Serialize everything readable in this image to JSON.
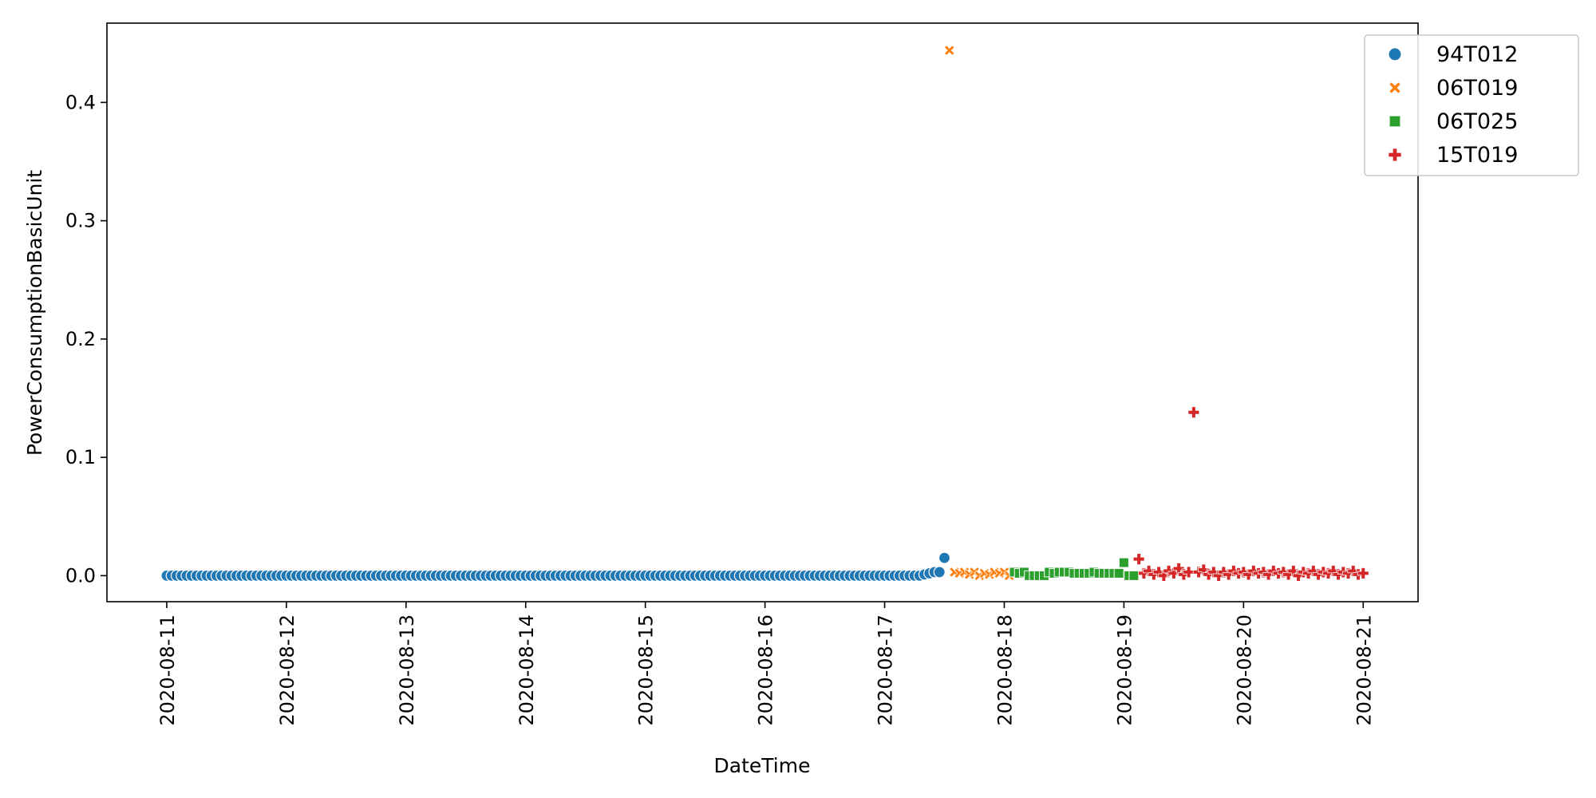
{
  "chart_data": {
    "type": "scatter",
    "title": "",
    "xlabel": "DateTime",
    "ylabel": "PowerConsumptionBasicUnit",
    "x_type": "datetime",
    "xlim": [
      "2020-08-10T12:00",
      "2020-08-21T11:00"
    ],
    "ylim": [
      -0.022,
      0.467
    ],
    "x_ticks": [
      "2020-08-11",
      "2020-08-12",
      "2020-08-13",
      "2020-08-14",
      "2020-08-15",
      "2020-08-16",
      "2020-08-17",
      "2020-08-18",
      "2020-08-19",
      "2020-08-20",
      "2020-08-21"
    ],
    "y_ticks": [
      "0.0",
      "0.1",
      "0.2",
      "0.3",
      "0.4"
    ],
    "grid": false,
    "legend_position": "upper-right-outside",
    "series": [
      {
        "name": "94T012",
        "marker": "circle",
        "color": "#1f77b4",
        "points": [
          [
            "2020-08-11T00:00",
            0.0
          ],
          [
            "2020-08-11T01:00",
            0.0
          ],
          [
            "2020-08-11T02:00",
            0.0
          ],
          [
            "2020-08-11T03:00",
            0.0
          ],
          [
            "2020-08-11T04:00",
            0.0
          ],
          [
            "2020-08-11T05:00",
            0.0
          ],
          [
            "2020-08-11T06:00",
            0.0
          ],
          [
            "2020-08-11T07:00",
            0.0
          ],
          [
            "2020-08-11T08:00",
            0.0
          ],
          [
            "2020-08-11T09:00",
            0.0
          ],
          [
            "2020-08-11T10:00",
            0.0
          ],
          [
            "2020-08-11T11:00",
            0.0
          ],
          [
            "2020-08-11T12:00",
            0.0
          ],
          [
            "2020-08-11T13:00",
            0.0
          ],
          [
            "2020-08-11T14:00",
            0.0
          ],
          [
            "2020-08-11T15:00",
            0.0
          ],
          [
            "2020-08-11T16:00",
            0.0
          ],
          [
            "2020-08-11T17:00",
            0.0
          ],
          [
            "2020-08-11T18:00",
            0.0
          ],
          [
            "2020-08-11T19:00",
            0.0
          ],
          [
            "2020-08-11T20:00",
            0.0
          ],
          [
            "2020-08-11T21:00",
            0.0
          ],
          [
            "2020-08-11T22:00",
            0.0
          ],
          [
            "2020-08-11T23:00",
            0.0
          ],
          [
            "2020-08-12T00:00",
            0.0
          ],
          [
            "2020-08-12T01:00",
            0.0
          ],
          [
            "2020-08-12T02:00",
            0.0
          ],
          [
            "2020-08-12T03:00",
            0.0
          ],
          [
            "2020-08-12T04:00",
            0.0
          ],
          [
            "2020-08-12T05:00",
            0.0
          ],
          [
            "2020-08-12T06:00",
            0.0
          ],
          [
            "2020-08-12T07:00",
            0.0
          ],
          [
            "2020-08-12T08:00",
            0.0
          ],
          [
            "2020-08-12T09:00",
            0.0
          ],
          [
            "2020-08-12T10:00",
            0.0
          ],
          [
            "2020-08-12T11:00",
            0.0
          ],
          [
            "2020-08-12T12:00",
            0.0
          ],
          [
            "2020-08-12T13:00",
            0.0
          ],
          [
            "2020-08-12T14:00",
            0.0
          ],
          [
            "2020-08-12T15:00",
            0.0
          ],
          [
            "2020-08-12T16:00",
            0.0
          ],
          [
            "2020-08-12T17:00",
            0.0
          ],
          [
            "2020-08-12T18:00",
            0.0
          ],
          [
            "2020-08-12T19:00",
            0.0
          ],
          [
            "2020-08-12T20:00",
            0.0
          ],
          [
            "2020-08-12T21:00",
            0.0
          ],
          [
            "2020-08-12T22:00",
            0.0
          ],
          [
            "2020-08-12T23:00",
            0.0
          ],
          [
            "2020-08-13T00:00",
            0.0
          ],
          [
            "2020-08-13T01:00",
            0.0
          ],
          [
            "2020-08-13T02:00",
            0.0
          ],
          [
            "2020-08-13T03:00",
            0.0
          ],
          [
            "2020-08-13T04:00",
            0.0
          ],
          [
            "2020-08-13T05:00",
            0.0
          ],
          [
            "2020-08-13T06:00",
            0.0
          ],
          [
            "2020-08-13T07:00",
            0.0
          ],
          [
            "2020-08-13T08:00",
            0.0
          ],
          [
            "2020-08-13T09:00",
            0.0
          ],
          [
            "2020-08-13T10:00",
            0.0
          ],
          [
            "2020-08-13T11:00",
            0.0
          ],
          [
            "2020-08-13T12:00",
            0.0
          ],
          [
            "2020-08-13T13:00",
            0.0
          ],
          [
            "2020-08-13T14:00",
            0.0
          ],
          [
            "2020-08-13T15:00",
            0.0
          ],
          [
            "2020-08-13T16:00",
            0.0
          ],
          [
            "2020-08-13T17:00",
            0.0
          ],
          [
            "2020-08-13T18:00",
            0.0
          ],
          [
            "2020-08-13T19:00",
            0.0
          ],
          [
            "2020-08-13T20:00",
            0.0
          ],
          [
            "2020-08-13T21:00",
            0.0
          ],
          [
            "2020-08-13T22:00",
            0.0
          ],
          [
            "2020-08-13T23:00",
            0.0
          ],
          [
            "2020-08-14T00:00",
            0.0
          ],
          [
            "2020-08-14T01:00",
            0.0
          ],
          [
            "2020-08-14T02:00",
            0.0
          ],
          [
            "2020-08-14T03:00",
            0.0
          ],
          [
            "2020-08-14T04:00",
            0.0
          ],
          [
            "2020-08-14T05:00",
            0.0
          ],
          [
            "2020-08-14T06:00",
            0.0
          ],
          [
            "2020-08-14T07:00",
            0.0
          ],
          [
            "2020-08-14T08:00",
            0.0
          ],
          [
            "2020-08-14T09:00",
            0.0
          ],
          [
            "2020-08-14T10:00",
            0.0
          ],
          [
            "2020-08-14T11:00",
            0.0
          ],
          [
            "2020-08-14T12:00",
            0.0
          ],
          [
            "2020-08-14T13:00",
            0.0
          ],
          [
            "2020-08-14T14:00",
            0.0
          ],
          [
            "2020-08-14T15:00",
            0.0
          ],
          [
            "2020-08-14T16:00",
            0.0
          ],
          [
            "2020-08-14T17:00",
            0.0
          ],
          [
            "2020-08-14T18:00",
            0.0
          ],
          [
            "2020-08-14T19:00",
            0.0
          ],
          [
            "2020-08-14T20:00",
            0.0
          ],
          [
            "2020-08-14T21:00",
            0.0
          ],
          [
            "2020-08-14T22:00",
            0.0
          ],
          [
            "2020-08-14T23:00",
            0.0
          ],
          [
            "2020-08-15T00:00",
            0.0
          ],
          [
            "2020-08-15T01:00",
            0.0
          ],
          [
            "2020-08-15T02:00",
            0.0
          ],
          [
            "2020-08-15T03:00",
            0.0
          ],
          [
            "2020-08-15T04:00",
            0.0
          ],
          [
            "2020-08-15T05:00",
            0.0
          ],
          [
            "2020-08-15T06:00",
            0.0
          ],
          [
            "2020-08-15T07:00",
            0.0
          ],
          [
            "2020-08-15T08:00",
            0.0
          ],
          [
            "2020-08-15T09:00",
            0.0
          ],
          [
            "2020-08-15T10:00",
            0.0
          ],
          [
            "2020-08-15T11:00",
            0.0
          ],
          [
            "2020-08-15T12:00",
            0.0
          ],
          [
            "2020-08-15T13:00",
            0.0
          ],
          [
            "2020-08-15T14:00",
            0.0
          ],
          [
            "2020-08-15T15:00",
            0.0
          ],
          [
            "2020-08-15T16:00",
            0.0
          ],
          [
            "2020-08-15T17:00",
            0.0
          ],
          [
            "2020-08-15T18:00",
            0.0
          ],
          [
            "2020-08-15T19:00",
            0.0
          ],
          [
            "2020-08-15T20:00",
            0.0
          ],
          [
            "2020-08-15T21:00",
            0.0
          ],
          [
            "2020-08-15T22:00",
            0.0
          ],
          [
            "2020-08-15T23:00",
            0.0
          ],
          [
            "2020-08-16T00:00",
            0.0
          ],
          [
            "2020-08-16T01:00",
            0.0
          ],
          [
            "2020-08-16T02:00",
            0.0
          ],
          [
            "2020-08-16T03:00",
            0.0
          ],
          [
            "2020-08-16T04:00",
            0.0
          ],
          [
            "2020-08-16T05:00",
            0.0
          ],
          [
            "2020-08-16T06:00",
            0.0
          ],
          [
            "2020-08-16T07:00",
            0.0
          ],
          [
            "2020-08-16T08:00",
            0.0
          ],
          [
            "2020-08-16T09:00",
            0.0
          ],
          [
            "2020-08-16T10:00",
            0.0
          ],
          [
            "2020-08-16T11:00",
            0.0
          ],
          [
            "2020-08-16T12:00",
            0.0
          ],
          [
            "2020-08-16T13:00",
            0.0
          ],
          [
            "2020-08-16T14:00",
            0.0
          ],
          [
            "2020-08-16T15:00",
            0.0
          ],
          [
            "2020-08-16T16:00",
            0.0
          ],
          [
            "2020-08-16T17:00",
            0.0
          ],
          [
            "2020-08-16T18:00",
            0.0
          ],
          [
            "2020-08-16T19:00",
            0.0
          ],
          [
            "2020-08-16T20:00",
            0.0
          ],
          [
            "2020-08-16T21:00",
            0.0
          ],
          [
            "2020-08-16T22:00",
            0.0
          ],
          [
            "2020-08-16T23:00",
            0.0
          ],
          [
            "2020-08-17T00:00",
            0.0
          ],
          [
            "2020-08-17T01:00",
            0.0
          ],
          [
            "2020-08-17T02:00",
            0.0
          ],
          [
            "2020-08-17T03:00",
            0.0
          ],
          [
            "2020-08-17T04:00",
            0.0
          ],
          [
            "2020-08-17T05:00",
            0.0
          ],
          [
            "2020-08-17T06:00",
            0.0
          ],
          [
            "2020-08-17T07:00",
            0.0
          ],
          [
            "2020-08-17T08:00",
            0.001
          ],
          [
            "2020-08-17T09:00",
            0.002
          ],
          [
            "2020-08-17T10:00",
            0.003
          ],
          [
            "2020-08-17T11:00",
            0.003
          ],
          [
            "2020-08-17T12:00",
            0.015
          ]
        ]
      },
      {
        "name": "06T019",
        "marker": "x",
        "color": "#ff7f0e",
        "points": [
          [
            "2020-08-17T13:00",
            0.444
          ],
          [
            "2020-08-17T14:00",
            0.003
          ],
          [
            "2020-08-17T15:00",
            0.002
          ],
          [
            "2020-08-17T16:00",
            0.003
          ],
          [
            "2020-08-17T17:00",
            0.001
          ],
          [
            "2020-08-17T18:00",
            0.003
          ],
          [
            "2020-08-17T19:00",
            0.0
          ],
          [
            "2020-08-17T20:00",
            0.002
          ],
          [
            "2020-08-17T21:00",
            0.001
          ],
          [
            "2020-08-17T22:00",
            0.003
          ],
          [
            "2020-08-17T23:00",
            0.002
          ],
          [
            "2020-08-18T00:00",
            0.003
          ],
          [
            "2020-08-18T01:00",
            0.0
          ]
        ]
      },
      {
        "name": "06T025",
        "marker": "square",
        "color": "#2ca02c",
        "points": [
          [
            "2020-08-18T02:00",
            0.003
          ],
          [
            "2020-08-18T03:00",
            0.002
          ],
          [
            "2020-08-18T04:00",
            0.003
          ],
          [
            "2020-08-18T05:00",
            0.0
          ],
          [
            "2020-08-18T06:00",
            0.0
          ],
          [
            "2020-08-18T07:00",
            0.0
          ],
          [
            "2020-08-18T08:00",
            0.0
          ],
          [
            "2020-08-18T09:00",
            0.003
          ],
          [
            "2020-08-18T10:00",
            0.002
          ],
          [
            "2020-08-18T11:00",
            0.003
          ],
          [
            "2020-08-18T12:00",
            0.003
          ],
          [
            "2020-08-18T13:00",
            0.003
          ],
          [
            "2020-08-18T14:00",
            0.002
          ],
          [
            "2020-08-18T15:00",
            0.002
          ],
          [
            "2020-08-18T16:00",
            0.002
          ],
          [
            "2020-08-18T17:00",
            0.002
          ],
          [
            "2020-08-18T18:00",
            0.003
          ],
          [
            "2020-08-18T19:00",
            0.002
          ],
          [
            "2020-08-18T20:00",
            0.002
          ],
          [
            "2020-08-18T21:00",
            0.002
          ],
          [
            "2020-08-18T22:00",
            0.002
          ],
          [
            "2020-08-18T23:00",
            0.002
          ],
          [
            "2020-08-19T00:00",
            0.011
          ],
          [
            "2020-08-19T01:00",
            0.0
          ],
          [
            "2020-08-19T02:00",
            0.0
          ]
        ]
      },
      {
        "name": "15T019",
        "marker": "plus",
        "color": "#d62728",
        "points": [
          [
            "2020-08-19T03:00",
            0.014
          ],
          [
            "2020-08-19T04:00",
            0.002
          ],
          [
            "2020-08-19T05:00",
            0.004
          ],
          [
            "2020-08-19T06:00",
            0.001
          ],
          [
            "2020-08-19T07:00",
            0.003
          ],
          [
            "2020-08-19T08:00",
            0.0
          ],
          [
            "2020-08-19T09:00",
            0.004
          ],
          [
            "2020-08-19T10:00",
            0.002
          ],
          [
            "2020-08-19T11:00",
            0.006
          ],
          [
            "2020-08-19T12:00",
            0.001
          ],
          [
            "2020-08-19T13:00",
            0.003
          ],
          [
            "2020-08-19T14:00",
            0.138
          ],
          [
            "2020-08-19T15:00",
            0.003
          ],
          [
            "2020-08-19T16:00",
            0.005
          ],
          [
            "2020-08-19T17:00",
            0.001
          ],
          [
            "2020-08-19T18:00",
            0.003
          ],
          [
            "2020-08-19T19:00",
            0.0
          ],
          [
            "2020-08-19T20:00",
            0.003
          ],
          [
            "2020-08-19T21:00",
            0.001
          ],
          [
            "2020-08-19T22:00",
            0.004
          ],
          [
            "2020-08-19T23:00",
            0.002
          ],
          [
            "2020-08-20T00:00",
            0.003
          ],
          [
            "2020-08-20T01:00",
            0.001
          ],
          [
            "2020-08-20T02:00",
            0.004
          ],
          [
            "2020-08-20T03:00",
            0.002
          ],
          [
            "2020-08-20T04:00",
            0.003
          ],
          [
            "2020-08-20T05:00",
            0.001
          ],
          [
            "2020-08-20T06:00",
            0.004
          ],
          [
            "2020-08-20T07:00",
            0.002
          ],
          [
            "2020-08-20T08:00",
            0.003
          ],
          [
            "2020-08-20T09:00",
            0.001
          ],
          [
            "2020-08-20T10:00",
            0.004
          ],
          [
            "2020-08-20T11:00",
            0.0
          ],
          [
            "2020-08-20T12:00",
            0.003
          ],
          [
            "2020-08-20T13:00",
            0.002
          ],
          [
            "2020-08-20T14:00",
            0.004
          ],
          [
            "2020-08-20T15:00",
            0.001
          ],
          [
            "2020-08-20T16:00",
            0.003
          ],
          [
            "2020-08-20T17:00",
            0.002
          ],
          [
            "2020-08-20T18:00",
            0.004
          ],
          [
            "2020-08-20T19:00",
            0.001
          ],
          [
            "2020-08-20T20:00",
            0.003
          ],
          [
            "2020-08-20T21:00",
            0.002
          ],
          [
            "2020-08-20T22:00",
            0.004
          ],
          [
            "2020-08-20T23:00",
            0.001
          ],
          [
            "2020-08-21T00:00",
            0.002
          ]
        ]
      }
    ]
  }
}
